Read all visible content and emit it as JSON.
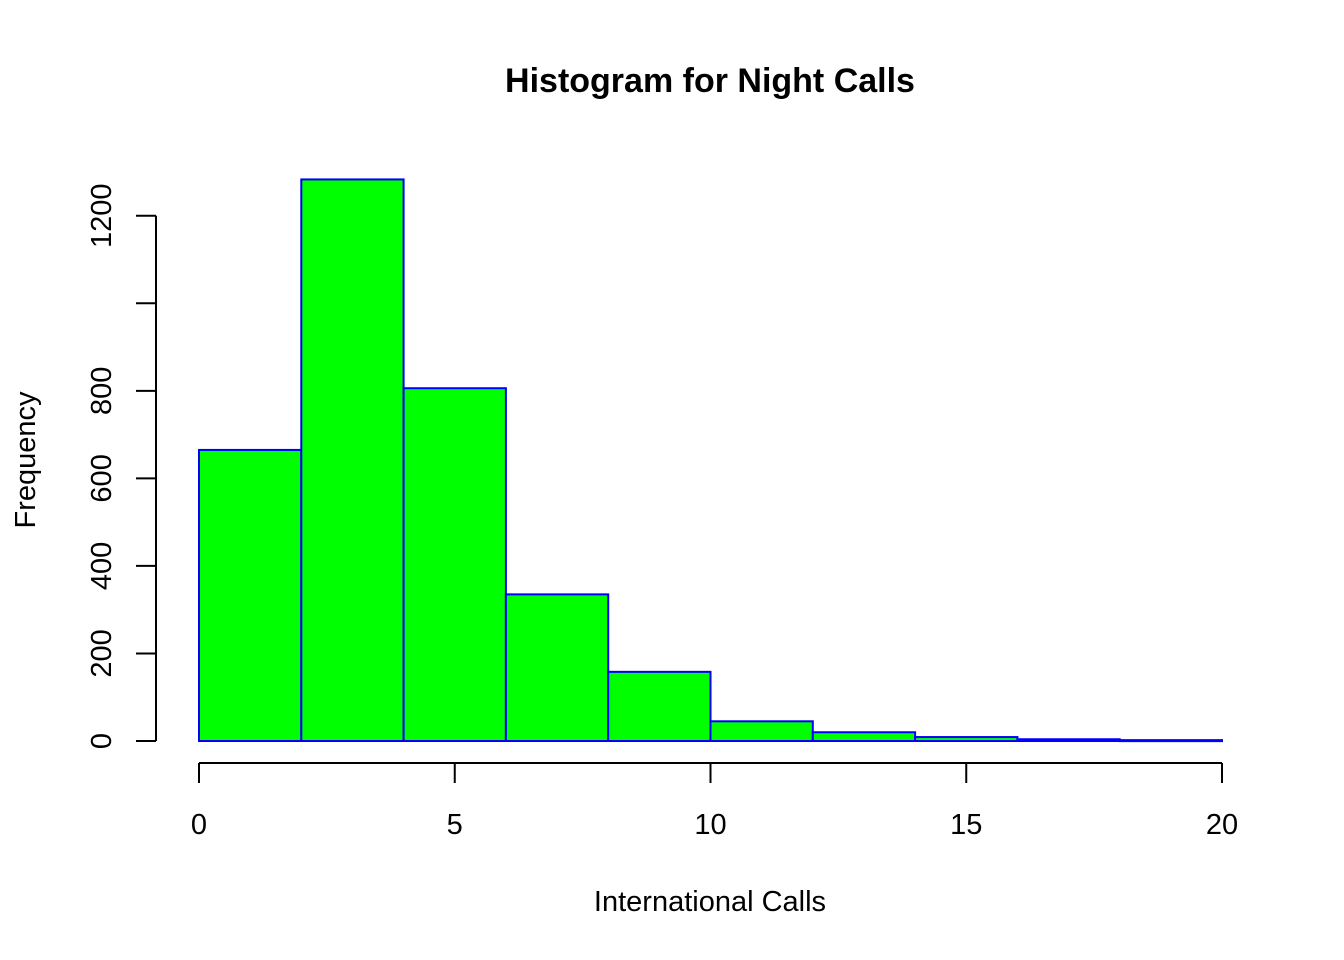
{
  "chart_data": {
    "type": "bar",
    "title": "Histogram for Night Calls",
    "xlabel": "International Calls",
    "ylabel": "Frequency",
    "bins": [
      {
        "x0": 0,
        "x1": 2,
        "value": 665
      },
      {
        "x0": 2,
        "x1": 4,
        "value": 1283
      },
      {
        "x0": 4,
        "x1": 6,
        "value": 806
      },
      {
        "x0": 6,
        "x1": 8,
        "value": 335
      },
      {
        "x0": 8,
        "x1": 10,
        "value": 158
      },
      {
        "x0": 10,
        "x1": 12,
        "value": 45
      },
      {
        "x0": 12,
        "x1": 14,
        "value": 20
      },
      {
        "x0": 14,
        "x1": 16,
        "value": 9
      },
      {
        "x0": 16,
        "x1": 18,
        "value": 4
      },
      {
        "x0": 18,
        "x1": 20,
        "value": 2
      }
    ],
    "xlim": [
      0,
      20
    ],
    "ylim": [
      0,
      1283
    ],
    "x_ticks": [
      0,
      5,
      10,
      15,
      20
    ],
    "y_ticks": [
      0,
      200,
      400,
      600,
      800,
      1000,
      1200
    ],
    "y_tick_labels": [
      "0",
      "200",
      "400",
      "600",
      "800",
      "",
      "1200"
    ],
    "bar_fill": "#00ff00",
    "bar_border": "#0000ff",
    "grid": false
  }
}
